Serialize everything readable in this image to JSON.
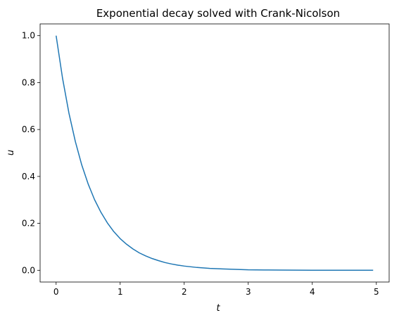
{
  "chart_data": {
    "type": "line",
    "title": "Exponential decay solved with Crank-Nicolson",
    "xlabel": "t",
    "ylabel": "u",
    "xlim": [
      -0.25,
      5.2
    ],
    "ylim": [
      -0.05,
      1.05
    ],
    "x_ticks": [
      {
        "value": 0,
        "label": "0"
      },
      {
        "value": 1,
        "label": "1"
      },
      {
        "value": 2,
        "label": "2"
      },
      {
        "value": 3,
        "label": "3"
      },
      {
        "value": 4,
        "label": "4"
      },
      {
        "value": 5,
        "label": "5"
      }
    ],
    "y_ticks": [
      {
        "value": 0.0,
        "label": "0.0"
      },
      {
        "value": 0.2,
        "label": "0.2"
      },
      {
        "value": 0.4,
        "label": "0.4"
      },
      {
        "value": 0.6,
        "label": "0.6"
      },
      {
        "value": 0.8,
        "label": "0.8"
      },
      {
        "value": 1.0,
        "label": "1.0"
      }
    ],
    "grid": false,
    "series": [
      {
        "color": "#1f77b4",
        "x": [
          0.0,
          0.1,
          0.2,
          0.3,
          0.4,
          0.5,
          0.6,
          0.7,
          0.8,
          0.9,
          1.0,
          1.1,
          1.2,
          1.3,
          1.4,
          1.5,
          1.6,
          1.7,
          1.8,
          1.9,
          2.0,
          2.2,
          2.4,
          2.6,
          2.8,
          3.0,
          3.25,
          3.5,
          3.75,
          4.0,
          4.25,
          4.5,
          4.75,
          4.95
        ],
        "y": [
          1.0,
          0.819,
          0.67,
          0.549,
          0.449,
          0.368,
          0.301,
          0.247,
          0.202,
          0.165,
          0.135,
          0.111,
          0.091,
          0.074,
          0.061,
          0.05,
          0.041,
          0.033,
          0.027,
          0.022,
          0.018,
          0.012,
          0.008,
          0.006,
          0.004,
          0.002,
          0.0015,
          0.0009,
          0.0006,
          0.0003,
          0.0002,
          0.0001,
          0.0001,
          0.0001
        ]
      }
    ]
  }
}
